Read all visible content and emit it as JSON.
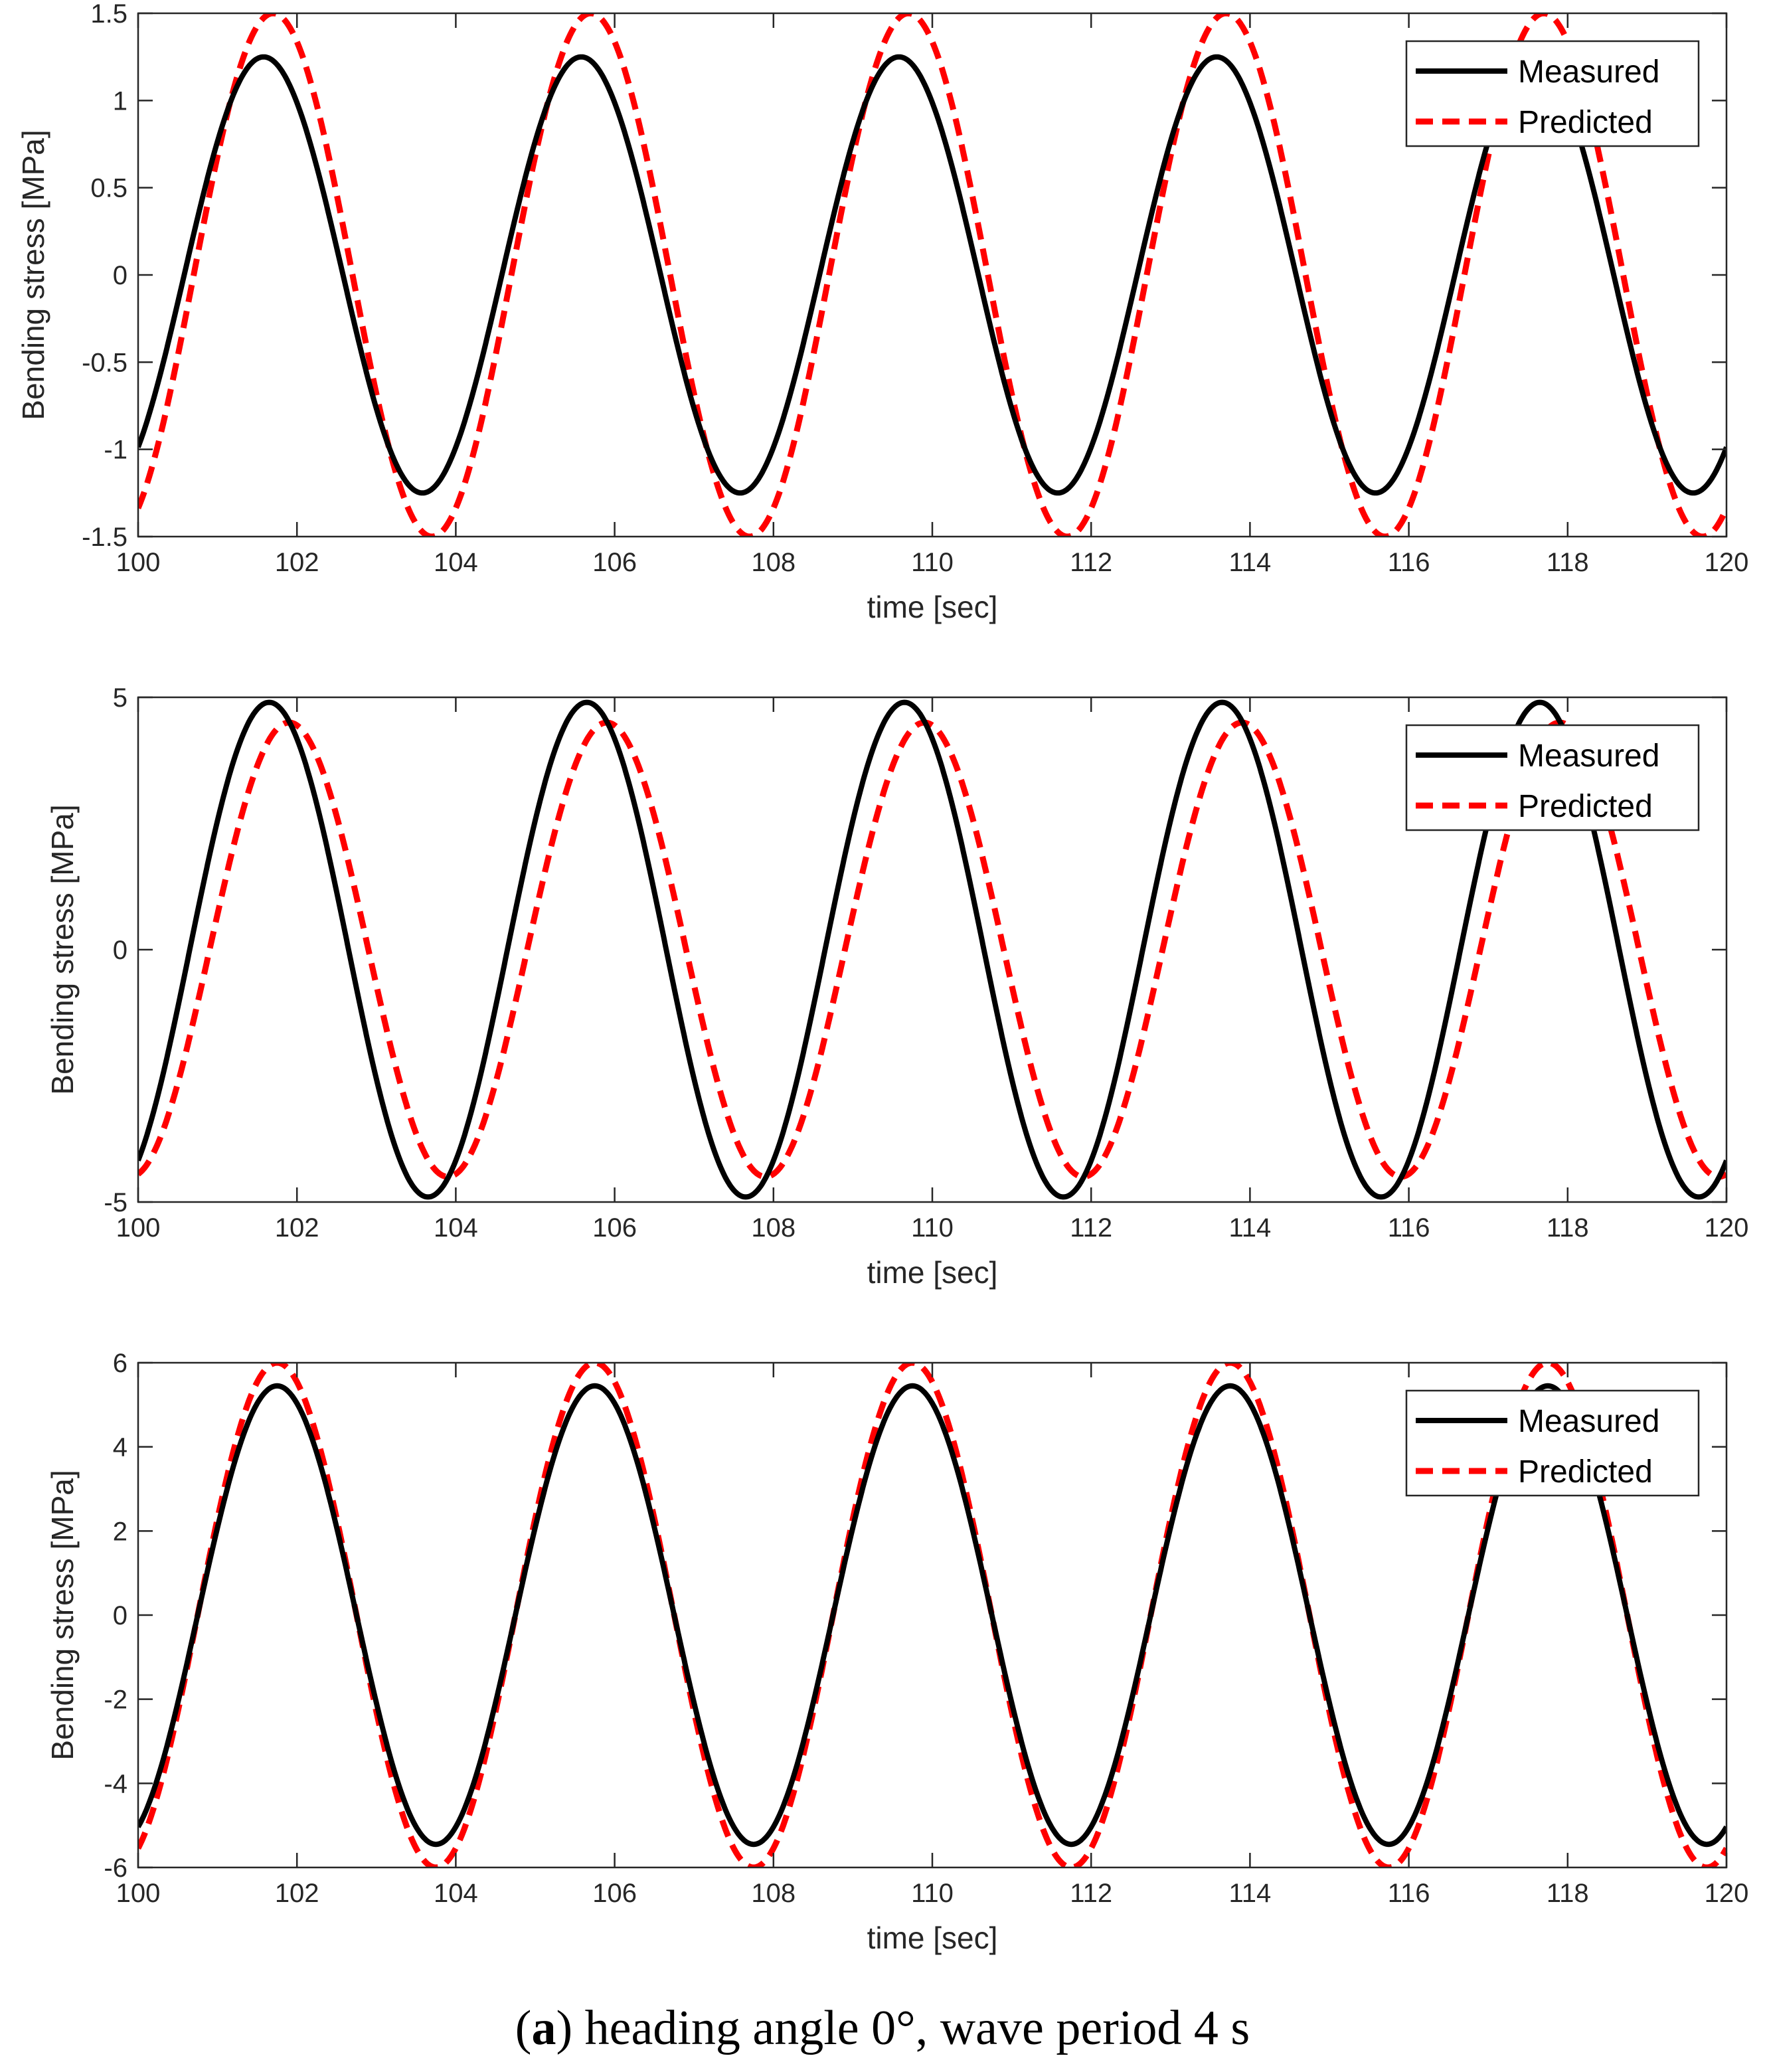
{
  "chart_data": [
    {
      "type": "line",
      "xlabel": "time [sec]",
      "ylabel": "Bending stress [MPa]",
      "xlim": [
        100,
        120
      ],
      "ylim": [
        -1.5,
        1.5
      ],
      "xticks": [
        "100",
        "102",
        "104",
        "106",
        "108",
        "110",
        "112",
        "114",
        "116",
        "118",
        "120"
      ],
      "yticks": [
        "-1.5",
        "-1",
        "-0.5",
        "0",
        "0.5",
        "1",
        "1.5"
      ],
      "legend_position": "top-right",
      "series": [
        {
          "name": "Measured",
          "style": "solid",
          "color": "#000000",
          "amplitude": 1.25,
          "period": 4,
          "peak_time": 101.58
        },
        {
          "name": "Predicted",
          "style": "dashed",
          "color": "#ff0000",
          "amplitude": 1.5,
          "period": 4,
          "peak_time": 101.7
        }
      ]
    },
    {
      "type": "line",
      "xlabel": "time [sec]",
      "ylabel": "Bending stress [MPa]",
      "xlim": [
        100,
        120
      ],
      "ylim": [
        -5,
        5
      ],
      "xticks": [
        "100",
        "102",
        "104",
        "106",
        "108",
        "110",
        "112",
        "114",
        "116",
        "118",
        "120"
      ],
      "yticks": [
        "-5",
        "0",
        "5"
      ],
      "legend_position": "top-right",
      "series": [
        {
          "name": "Measured",
          "style": "solid",
          "color": "#000000",
          "amplitude": 4.9,
          "period": 4,
          "peak_time": 101.65
        },
        {
          "name": "Predicted",
          "style": "dashed",
          "color": "#ff0000",
          "amplitude": 4.5,
          "period": 4,
          "peak_time": 101.9
        }
      ]
    },
    {
      "type": "line",
      "xlabel": "time [sec]",
      "ylabel": "Bending stress [MPa]",
      "xlim": [
        100,
        120
      ],
      "ylim": [
        -6,
        6
      ],
      "xticks": [
        "100",
        "102",
        "104",
        "106",
        "108",
        "110",
        "112",
        "114",
        "116",
        "118",
        "120"
      ],
      "yticks": [
        "-6",
        "-4",
        "-2",
        "0",
        "2",
        "4",
        "6"
      ],
      "legend_position": "top-right",
      "series": [
        {
          "name": "Measured",
          "style": "solid",
          "color": "#000000",
          "amplitude": 5.45,
          "period": 4,
          "peak_time": 101.75
        },
        {
          "name": "Predicted",
          "style": "dashed",
          "color": "#ff0000",
          "amplitude": 6.0,
          "period": 4,
          "peak_time": 101.75
        }
      ]
    }
  ],
  "caption": {
    "bold_part": "a",
    "text": "heading angle 0°, wave period 4 s"
  }
}
